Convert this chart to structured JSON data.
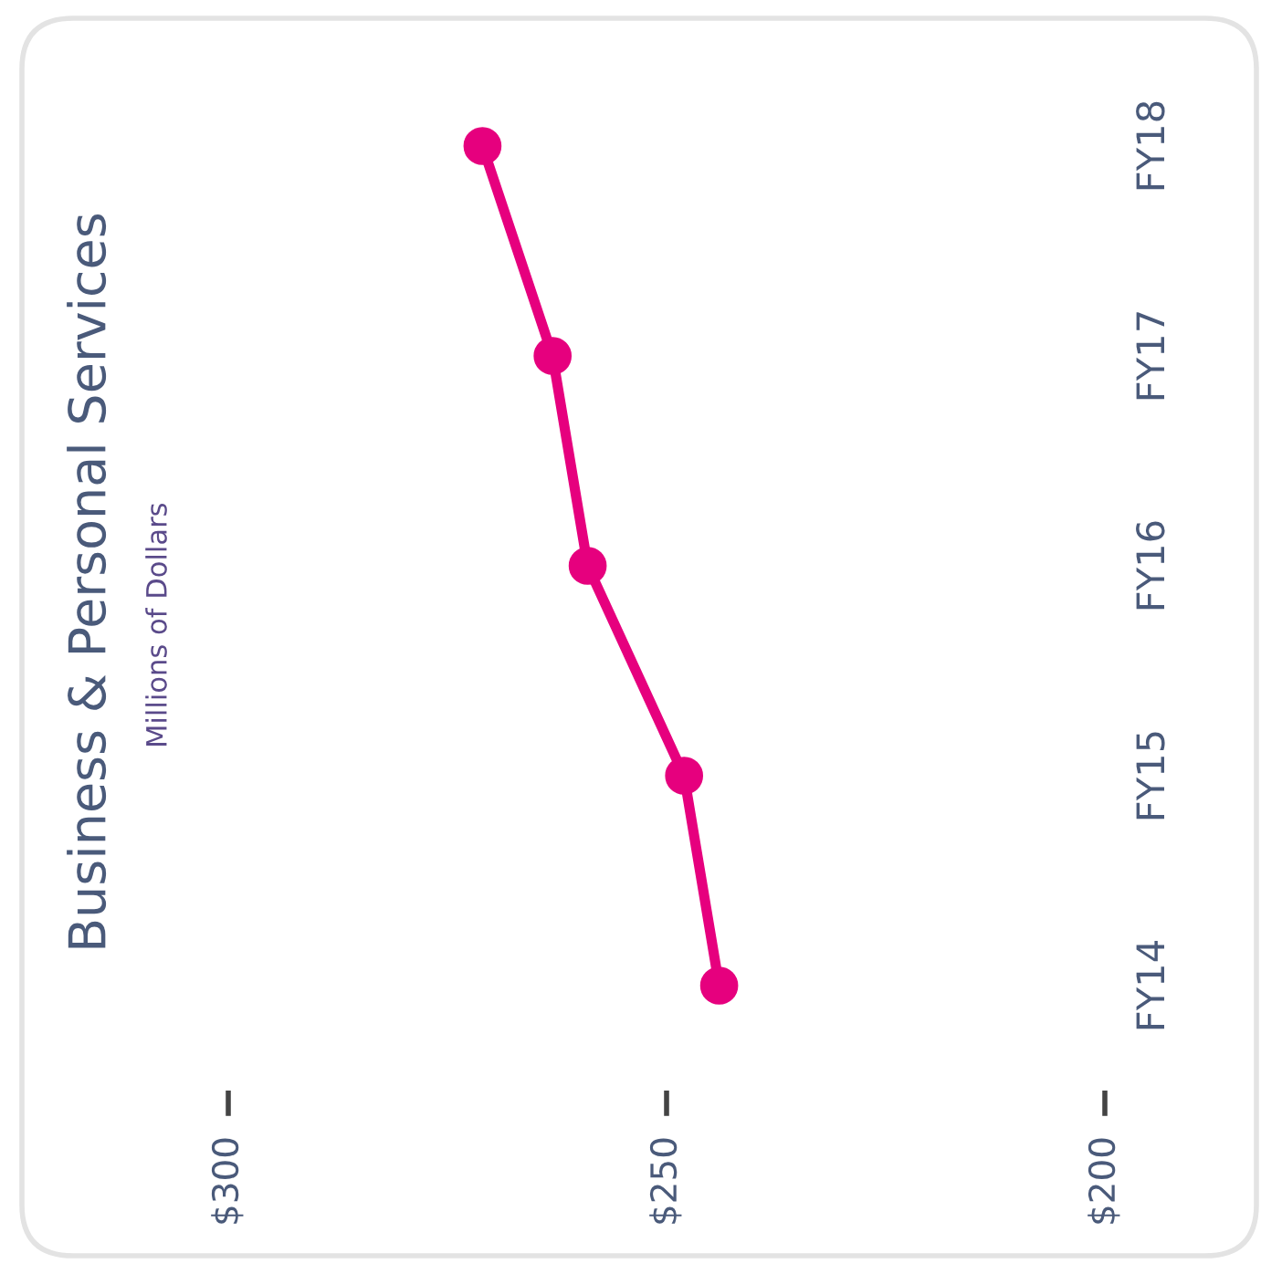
{
  "chart_data": {
    "type": "line",
    "orientation": "horizontal",
    "title": "Business & Personal Services",
    "subtitle": "Millions of Dollars",
    "categories": [
      "FY18",
      "FY17",
      "FY16",
      "FY15",
      "FY14"
    ],
    "series": [
      {
        "color": "#e6007e",
        "values": [
          271,
          263,
          259,
          248,
          244
        ]
      }
    ],
    "xlim": [
      300,
      200
    ],
    "xticks": [
      {
        "value": 300,
        "label": "$300"
      },
      {
        "value": 250,
        "label": "$250"
      },
      {
        "value": 200,
        "label": "$200"
      }
    ],
    "marker": "circle",
    "line_style": "solid",
    "grid": false
  }
}
